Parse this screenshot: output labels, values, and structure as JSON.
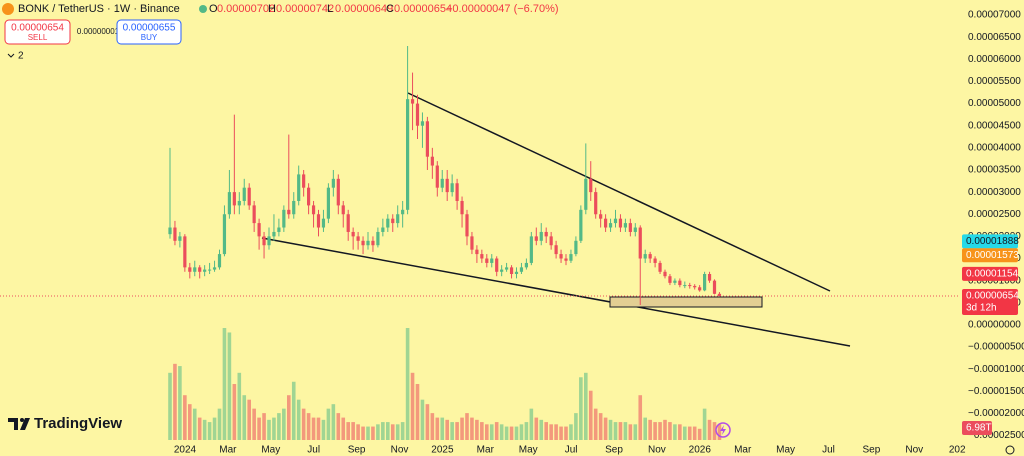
{
  "header": {
    "symbol": "BONK / TetherUS · 1W · Binance",
    "ohlc": [
      {
        "key": "O",
        "value": "0.00000702"
      },
      {
        "key": "H",
        "value": "0.00000742"
      },
      {
        "key": "L",
        "value": "0.00000649"
      },
      {
        "key": "C",
        "value": "0.00000654"
      }
    ],
    "change": "−0.00000047 (−6.70%)"
  },
  "trade": {
    "sell_price": "0.00000654",
    "sell_label": "SELL",
    "spread": "0.00000001",
    "buy_price": "0.00000655",
    "buy_label": "BUY"
  },
  "indicators_toggle": "2",
  "logo": "TradingView",
  "chart_data": {
    "type": "candlestick",
    "up_color": "#53b987",
    "down_color": "#eb4d5c",
    "grid": false,
    "ylim": [
      -2.6e-05,
      7.34e-05
    ],
    "yticks": [
      {
        "value": 7e-05,
        "label": "0.00007000"
      },
      {
        "value": 6.5e-05,
        "label": "0.00006500"
      },
      {
        "value": 6e-05,
        "label": "0.00006000"
      },
      {
        "value": 5.5e-05,
        "label": "0.00005500"
      },
      {
        "value": 5e-05,
        "label": "0.00005000"
      },
      {
        "value": 4.5e-05,
        "label": "0.00004500"
      },
      {
        "value": 4e-05,
        "label": "0.00004000"
      },
      {
        "value": 3.5e-05,
        "label": "0.00003500"
      },
      {
        "value": 3e-05,
        "label": "0.00003000"
      },
      {
        "value": 2.5e-05,
        "label": "0.00002500"
      },
      {
        "value": 2e-05,
        "label": "0.00002000"
      },
      {
        "value": 1.5e-05,
        "label": "0.00001500"
      },
      {
        "value": 1e-05,
        "label": "0.00001000"
      },
      {
        "value": 5e-06,
        "label": "0.00000500"
      },
      {
        "value": 0,
        "label": "0.00000000"
      },
      {
        "value": -5e-06,
        "label": "−0.00000500"
      },
      {
        "value": -1e-05,
        "label": "−0.00001000"
      },
      {
        "value": -1.5e-05,
        "label": "−0.00001500"
      },
      {
        "value": -2e-05,
        "label": "−0.00002000"
      },
      {
        "value": -2.5e-05,
        "label": "−0.00002500"
      }
    ],
    "xtick_labels": [
      "2024",
      "Mar",
      "May",
      "Jul",
      "Sep",
      "Nov",
      "2025",
      "Mar",
      "May",
      "Jul",
      "Sep",
      "Nov",
      "2026",
      "Mar",
      "May",
      "Jul",
      "Sep",
      "Nov",
      "202"
    ],
    "open": [
      2.05e-05,
      2.2e-05,
      1.9e-05,
      2e-05,
      1.3e-05,
      1.2e-05,
      1.3e-05,
      1.2e-05,
      1.25e-05,
      1.25e-05,
      1.3e-05,
      1.6e-05,
      2.5e-05,
      3e-05,
      2.7e-05,
      2.8e-05,
      3.1e-05,
      2.7e-05,
      2.3e-05,
      2e-05,
      1.8e-05,
      2e-05,
      2.1e-05,
      2.2e-05,
      2.6e-05,
      2.5e-05,
      2.8e-05,
      3.4e-05,
      3.1e-05,
      2.7e-05,
      2.5e-05,
      2.2e-05,
      2.4e-05,
      3.1e-05,
      3.3e-05,
      2.7e-05,
      2.5e-05,
      2.1e-05,
      2e-05,
      1.9e-05,
      1.8e-05,
      1.9e-05,
      1.8e-05,
      2.1e-05,
      2.2e-05,
      2.4e-05,
      2.3e-05,
      2.5e-05,
      2.6e-05,
      5.1e-05,
      5e-05,
      4.5e-05,
      4.6e-05,
      3.8e-05,
      3.6e-05,
      3.1e-05,
      3.3e-05,
      3e-05,
      3.2e-05,
      2.8e-05,
      2.5e-05,
      2e-05,
      1.7e-05,
      1.6e-05,
      1.5e-05,
      1.4e-05,
      1.5e-05,
      1.2e-05,
      1.25e-05,
      1.3e-05,
      1.15e-05,
      1.2e-05,
      1.3e-05,
      1.4e-05,
      2e-05,
      1.9e-05,
      2.1e-05,
      2e-05,
      1.8e-05,
      1.6e-05,
      1.5e-05,
      1.45e-05,
      1.6e-05,
      1.9e-05,
      2.6e-05,
      3.3e-05,
      3e-05,
      2.5e-05,
      2.4e-05,
      2.2e-05,
      2.3e-05,
      2.4e-05,
      2.2e-05,
      2.3e-05,
      2.1e-05,
      2.2e-05,
      1.5e-05,
      1.6e-05,
      1.5e-05,
      1.4e-05,
      1.2e-05,
      1.1e-05,
      9.5e-06,
      1e-05,
      9e-06,
      9e-06,
      8.8e-06,
      8.5e-06,
      7.8e-06,
      1.15e-05,
      1e-05,
      7.02e-06
    ],
    "high": [
      4e-05,
      2.35e-05,
      2.1e-05,
      2.05e-05,
      1.4e-05,
      1.45e-05,
      1.35e-05,
      1.35e-05,
      1.4e-05,
      1.45e-05,
      1.7e-05,
      2.7e-05,
      3.5e-05,
      4.75e-05,
      3e-05,
      3.3e-05,
      3.2e-05,
      2.8e-05,
      2.4e-05,
      2.1e-05,
      2.2e-05,
      2.5e-05,
      2.4e-05,
      2.7e-05,
      4.3e-05,
      3e-05,
      3.6e-05,
      3.5e-05,
      3.2e-05,
      2.8e-05,
      2.6e-05,
      2.6e-05,
      3.2e-05,
      3.5e-05,
      3.4e-05,
      2.8e-05,
      2.6e-05,
      2.2e-05,
      2.1e-05,
      2e-05,
      2.1e-05,
      2e-05,
      2.2e-05,
      2.4e-05,
      2.5e-05,
      2.5e-05,
      2.7e-05,
      2.8e-05,
      6.3e-05,
      5.7e-05,
      5.2e-05,
      4.8e-05,
      4.7e-05,
      4e-05,
      3.7e-05,
      3.5e-05,
      3.5e-05,
      3.4e-05,
      3.3e-05,
      2.9e-05,
      2.6e-05,
      2.1e-05,
      1.8e-05,
      1.7e-05,
      1.6e-05,
      1.6e-05,
      1.55e-05,
      1.35e-05,
      1.4e-05,
      1.35e-05,
      1.3e-05,
      1.4e-05,
      1.5e-05,
      2.1e-05,
      2.2e-05,
      2.3e-05,
      2.2e-05,
      2.1e-05,
      1.9e-05,
      1.7e-05,
      1.6e-05,
      1.7e-05,
      2e-05,
      2.7e-05,
      4.1e-05,
      3.7e-05,
      3.1e-05,
      2.6e-05,
      2.5e-05,
      2.4e-05,
      2.6e-05,
      2.5e-05,
      2.4e-05,
      2.4e-05,
      2.3e-05,
      2.25e-05,
      1.7e-05,
      1.65e-05,
      1.55e-05,
      1.45e-05,
      1.25e-05,
      1.15e-05,
      1.05e-05,
      1.05e-05,
      9.8e-06,
      9.5e-06,
      9.2e-06,
      9e-06,
      1.2e-05,
      1.2e-05,
      1.03e-05,
      7.42e-06
    ],
    "low": [
      1.95e-05,
      1.8e-05,
      1.75e-05,
      1.2e-05,
      1.05e-05,
      1.1e-05,
      1.05e-05,
      1.1e-05,
      1.15e-05,
      1.2e-05,
      1.25e-05,
      1.55e-05,
      2.4e-05,
      2.5e-05,
      2.5e-05,
      2.7e-05,
      2.6e-05,
      2.1e-05,
      1.7e-05,
      1.5e-05,
      1.7e-05,
      1.9e-05,
      2e-05,
      2.1e-05,
      2.4e-05,
      2.4e-05,
      2.7e-05,
      2.9e-05,
      2.5e-05,
      2.2e-05,
      2e-05,
      2.1e-05,
      2.3e-05,
      2.9e-05,
      2.5e-05,
      2.2e-05,
      1.9e-05,
      1.7e-05,
      1.7e-05,
      1.6e-05,
      1.7e-05,
      1.65e-05,
      1.75e-05,
      2e-05,
      2.1e-05,
      2.1e-05,
      2.2e-05,
      2.2e-05,
      2.5e-05,
      4.4e-05,
      4.2e-05,
      4e-05,
      3.5e-05,
      3.3e-05,
      2.9e-05,
      3e-05,
      2.8e-05,
      2.9e-05,
      2.6e-05,
      2.2e-05,
      1.8e-05,
      1.6e-05,
      1.4e-05,
      1.4e-05,
      1.3e-05,
      1.3e-05,
      1.1e-05,
      1.1e-05,
      1.2e-05,
      1.05e-05,
      1.05e-05,
      1.15e-05,
      1.25e-05,
      1.35e-05,
      1.8e-05,
      1.8e-05,
      1.85e-05,
      1.7e-05,
      1.5e-05,
      1.4e-05,
      1.35e-05,
      1.4e-05,
      1.55e-05,
      1.85e-05,
      2.5e-05,
      2.8e-05,
      2.4e-05,
      2.2e-05,
      2.1e-05,
      2.1e-05,
      2.2e-05,
      2.1e-05,
      2.1e-05,
      2e-05,
      2e-05,
      4.5e-06,
      1.4e-05,
      1.4e-05,
      1.3e-05,
      1.15e-05,
      1.05e-05,
      9e-06,
      9e-06,
      8.5e-06,
      8.3e-06,
      8.2e-06,
      8e-06,
      7.5e-06,
      7.6e-06,
      9.5e-06,
      6.9e-06,
      6.49e-06
    ],
    "close": [
      2.2e-05,
      1.9e-05,
      2e-05,
      1.3e-05,
      1.2e-05,
      1.3e-05,
      1.2e-05,
      1.25e-05,
      1.25e-05,
      1.3e-05,
      1.6e-05,
      2.5e-05,
      3e-05,
      2.7e-05,
      2.8e-05,
      3.1e-05,
      2.7e-05,
      2.3e-05,
      2e-05,
      1.8e-05,
      2e-05,
      2.1e-05,
      2.2e-05,
      2.6e-05,
      2.5e-05,
      2.8e-05,
      3.4e-05,
      3.1e-05,
      2.7e-05,
      2.5e-05,
      2.2e-05,
      2.4e-05,
      3.1e-05,
      3.3e-05,
      2.7e-05,
      2.5e-05,
      2.1e-05,
      2e-05,
      1.9e-05,
      1.8e-05,
      1.9e-05,
      1.8e-05,
      2.1e-05,
      2.2e-05,
      2.4e-05,
      2.3e-05,
      2.5e-05,
      2.6e-05,
      5.1e-05,
      5e-05,
      4.5e-05,
      4.6e-05,
      3.8e-05,
      3.6e-05,
      3.1e-05,
      3.3e-05,
      3e-05,
      3.2e-05,
      2.8e-05,
      2.5e-05,
      2e-05,
      1.7e-05,
      1.6e-05,
      1.5e-05,
      1.4e-05,
      1.5e-05,
      1.2e-05,
      1.25e-05,
      1.3e-05,
      1.15e-05,
      1.2e-05,
      1.3e-05,
      1.4e-05,
      2e-05,
      1.9e-05,
      2.1e-05,
      2e-05,
      1.8e-05,
      1.6e-05,
      1.5e-05,
      1.45e-05,
      1.6e-05,
      1.9e-05,
      2.6e-05,
      3.3e-05,
      3e-05,
      2.5e-05,
      2.4e-05,
      2.2e-05,
      2.3e-05,
      2.4e-05,
      2.2e-05,
      2.3e-05,
      2.1e-05,
      2.2e-05,
      1.5e-05,
      1.6e-05,
      1.5e-05,
      1.4e-05,
      1.2e-05,
      1.1e-05,
      9.5e-06,
      1e-05,
      9e-06,
      9e-06,
      8.8e-06,
      8.5e-06,
      7.8e-06,
      1.15e-05,
      1e-05,
      7.02e-06,
      6.54e-06
    ],
    "volume": [
      30,
      34,
      33,
      20,
      16,
      14,
      10,
      9,
      8,
      10,
      14,
      50,
      48,
      25,
      30,
      20,
      18,
      14,
      10,
      12,
      9,
      10,
      12,
      14,
      20,
      26,
      18,
      14,
      12,
      10,
      10,
      9,
      14,
      16,
      12,
      10,
      8,
      8,
      7,
      6,
      6,
      6,
      7,
      8,
      8,
      7,
      7,
      8,
      50,
      30,
      25,
      18,
      16,
      12,
      10,
      10,
      9,
      8,
      8,
      10,
      12,
      10,
      9,
      8,
      7,
      7,
      8,
      7,
      6,
      6,
      6,
      7,
      8,
      14,
      10,
      9,
      8,
      7,
      7,
      6,
      6,
      7,
      12,
      28,
      30,
      22,
      14,
      12,
      10,
      9,
      8,
      8,
      8,
      7,
      7,
      20,
      10,
      9,
      8,
      8,
      9,
      8,
      7,
      7,
      6,
      6,
      6,
      5,
      14,
      9,
      8,
      6.98
    ],
    "volume_label": "6.98T",
    "price_labels": [
      {
        "value": 1.888e-05,
        "label": "0.00001888",
        "color": "#26d9e8",
        "text_color": "#131722"
      },
      {
        "value": 1.573e-05,
        "label": "0.00001573",
        "color": "#f7931a",
        "text_color": "#ffffff"
      },
      {
        "value": 1.154e-05,
        "label": "0.00001154",
        "color": "#f23645",
        "text_color": "#ffffff"
      },
      {
        "value": 6.54e-06,
        "label": "0.00000654",
        "color": "#f23645",
        "text_color": "#ffffff",
        "countdown": "3d 12h"
      }
    ]
  }
}
